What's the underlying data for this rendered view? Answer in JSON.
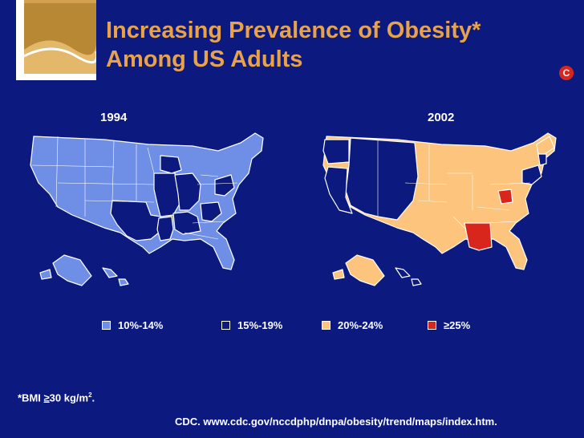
{
  "title": {
    "line1": "Increasing Prevalence of Obesity*",
    "line2": "Among US Adults"
  },
  "badge_icon": "copyright-c-icon",
  "maps": [
    {
      "year": "1994"
    },
    {
      "year": "2002"
    }
  ],
  "legend": [
    {
      "label": "10%-14%",
      "color": "#6f8fe6"
    },
    {
      "label": "15%-19%",
      "color": "#0c1a80"
    },
    {
      "label": "20%-24%",
      "color": "#fcc47c"
    },
    {
      "label": "≥25%",
      "color": "#d9261c"
    }
  ],
  "footnote": {
    "bmi_prefix": "*BMI ",
    "bmi_symbol": "≥",
    "bmi_value": "30 kg/m",
    "bmi_sup": "2",
    "bmi_end": ".",
    "source": "CDC. www.cdc.gov/nccdphp/dnpa/obesity/trend/maps/index.htm."
  },
  "colors": {
    "background": "#0c1a80",
    "title": "#e8a24a",
    "low": "#6f8fe6",
    "mid": "#0c1a80",
    "high": "#fcc47c",
    "top": "#d9261c"
  }
}
